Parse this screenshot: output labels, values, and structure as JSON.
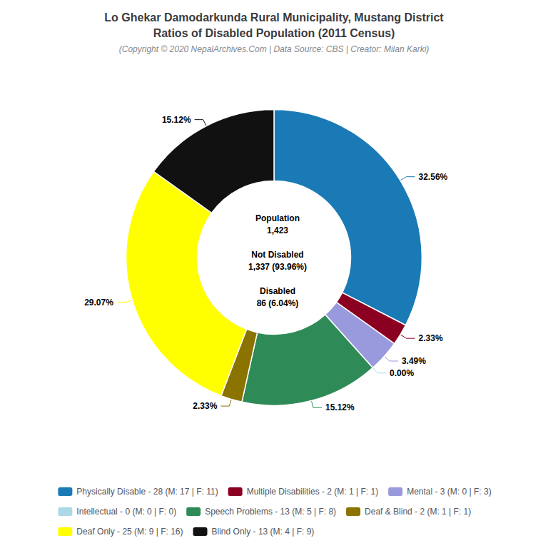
{
  "chart_data": {
    "type": "pie",
    "title": "Lo Ghekar Damodarkunda Rural Municipality, Mustang District\nRatios of Disabled Population (2011 Census)",
    "subtitle": "(Copyright © 2020 NepalArchives.Com | Data Source: CBS | Creator: Milan Karki)",
    "annotations": [
      "Population",
      "1,423",
      "Not Disabled",
      "1,337 (93.96%)",
      "Disabled",
      "86 (6.04%)"
    ],
    "categories": [
      "Physically Disable - 28 (M: 17 | F: 11)",
      "Multiple Disabilities - 2 (M: 1 | F: 1)",
      "Mental - 3 (M: 0 | F: 3)",
      "Intellectual - 0 (M: 0 | F: 0)",
      "Speech Problems - 13 (M: 5 | F: 8)",
      "Deaf & Blind - 2 (M: 1 | F: 1)",
      "Deaf Only - 25 (M: 9 | F: 16)",
      "Blind Only - 13 (M: 4 | F: 9)"
    ],
    "values": [
      32.56,
      2.33,
      3.49,
      0.0,
      15.12,
      2.33,
      29.07,
      15.12
    ],
    "value_labels": [
      "32.56%",
      "2.33%",
      "3.49%",
      "0.00%",
      "15.12%",
      "2.33%",
      "29.07%",
      "15.12%"
    ],
    "colors": [
      "#1a7ab5",
      "#8b0020",
      "#9999dd",
      "#add8e6",
      "#2e8b57",
      "#8b7300",
      "#ffff00",
      "#111111"
    ],
    "data_labels": true,
    "legend": "bottom"
  }
}
